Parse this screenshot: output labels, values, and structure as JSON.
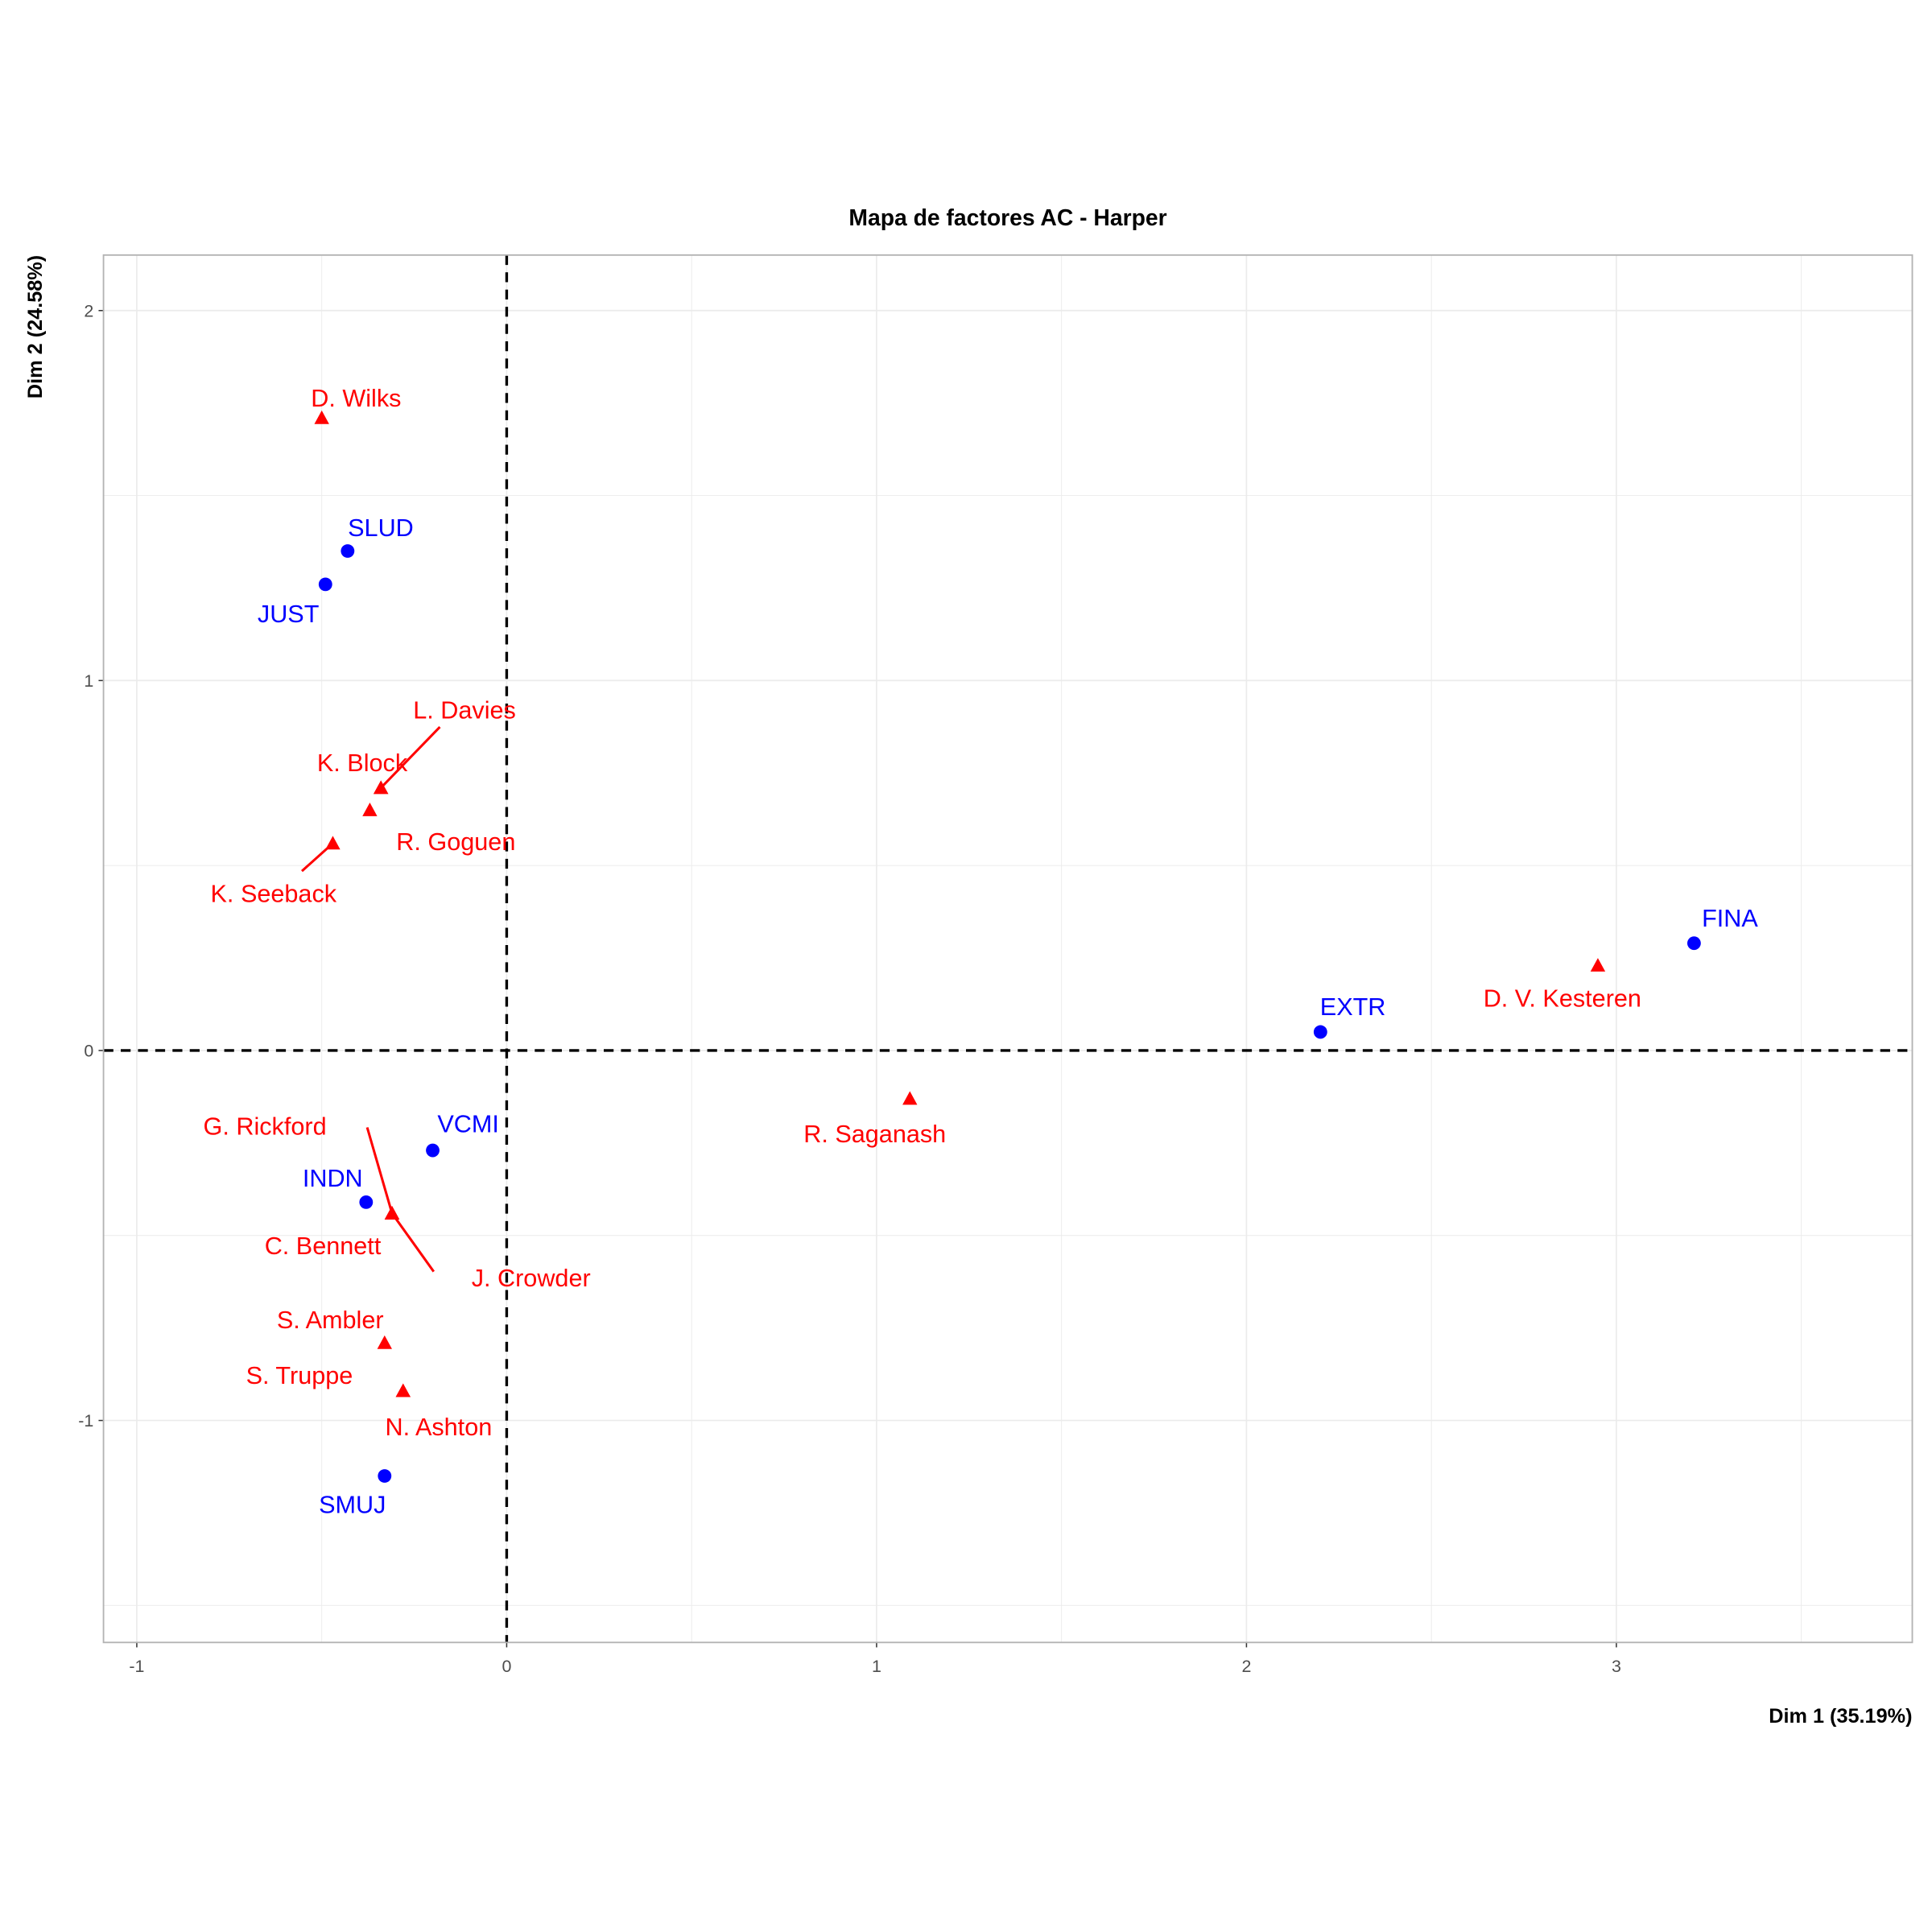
{
  "chart_data": {
    "type": "scatter",
    "title": "Mapa de factores AC - Harper",
    "xlabel": "Dim 1 (35.19%)",
    "ylabel": "Dim 2 (24.58%)",
    "xlim": [
      -1.09,
      3.8
    ],
    "ylim": [
      -1.6,
      2.15
    ],
    "xticks": [
      -1,
      0,
      1,
      2,
      3
    ],
    "yticks": [
      -1,
      0,
      1,
      2
    ],
    "grid": true,
    "reference_lines": {
      "x": 0,
      "y": 0,
      "style": "dashed"
    },
    "colors": {
      "rows": "#ff0000",
      "columns": "#0000ff"
    },
    "points": [
      {
        "label": "D. Wilks",
        "x": -0.5,
        "y": 1.71,
        "group": "rows"
      },
      {
        "label": "SLUD",
        "x": -0.43,
        "y": 1.35,
        "group": "columns"
      },
      {
        "label": "JUST",
        "x": -0.49,
        "y": 1.26,
        "group": "columns"
      },
      {
        "label": "L. Davies",
        "x": -0.34,
        "y": 0.71,
        "group": "rows"
      },
      {
        "label": "K. Block",
        "x": -0.34,
        "y": 0.71,
        "group": "rows"
      },
      {
        "label": "R. Goguen",
        "x": -0.37,
        "y": 0.65,
        "group": "rows"
      },
      {
        "label": "K. Seeback",
        "x": -0.47,
        "y": 0.56,
        "group": "rows"
      },
      {
        "label": "FINA",
        "x": 3.21,
        "y": 0.29,
        "group": "columns"
      },
      {
        "label": "D. V. Kesteren",
        "x": 2.95,
        "y": 0.23,
        "group": "rows"
      },
      {
        "label": "EXTR",
        "x": 2.2,
        "y": 0.05,
        "group": "columns"
      },
      {
        "label": "R. Saganash",
        "x": 1.09,
        "y": -0.13,
        "group": "rows"
      },
      {
        "label": "VCMI",
        "x": -0.2,
        "y": -0.27,
        "group": "columns"
      },
      {
        "label": "G. Rickford",
        "x": -0.31,
        "y": -0.44,
        "group": "rows"
      },
      {
        "label": "INDN",
        "x": -0.38,
        "y": -0.41,
        "group": "columns"
      },
      {
        "label": "C. Bennett",
        "x": -0.31,
        "y": -0.44,
        "group": "rows"
      },
      {
        "label": "J. Crowder",
        "x": -0.31,
        "y": -0.44,
        "group": "rows"
      },
      {
        "label": "S. Ambler",
        "x": -0.33,
        "y": -0.79,
        "group": "rows"
      },
      {
        "label": "S. Truppe",
        "x": -0.28,
        "y": -0.92,
        "group": "rows"
      },
      {
        "label": "N. Ashton",
        "x": -0.28,
        "y": -0.92,
        "group": "rows"
      },
      {
        "label": "SMUJ",
        "x": -0.33,
        "y": -1.15,
        "group": "columns"
      }
    ]
  }
}
